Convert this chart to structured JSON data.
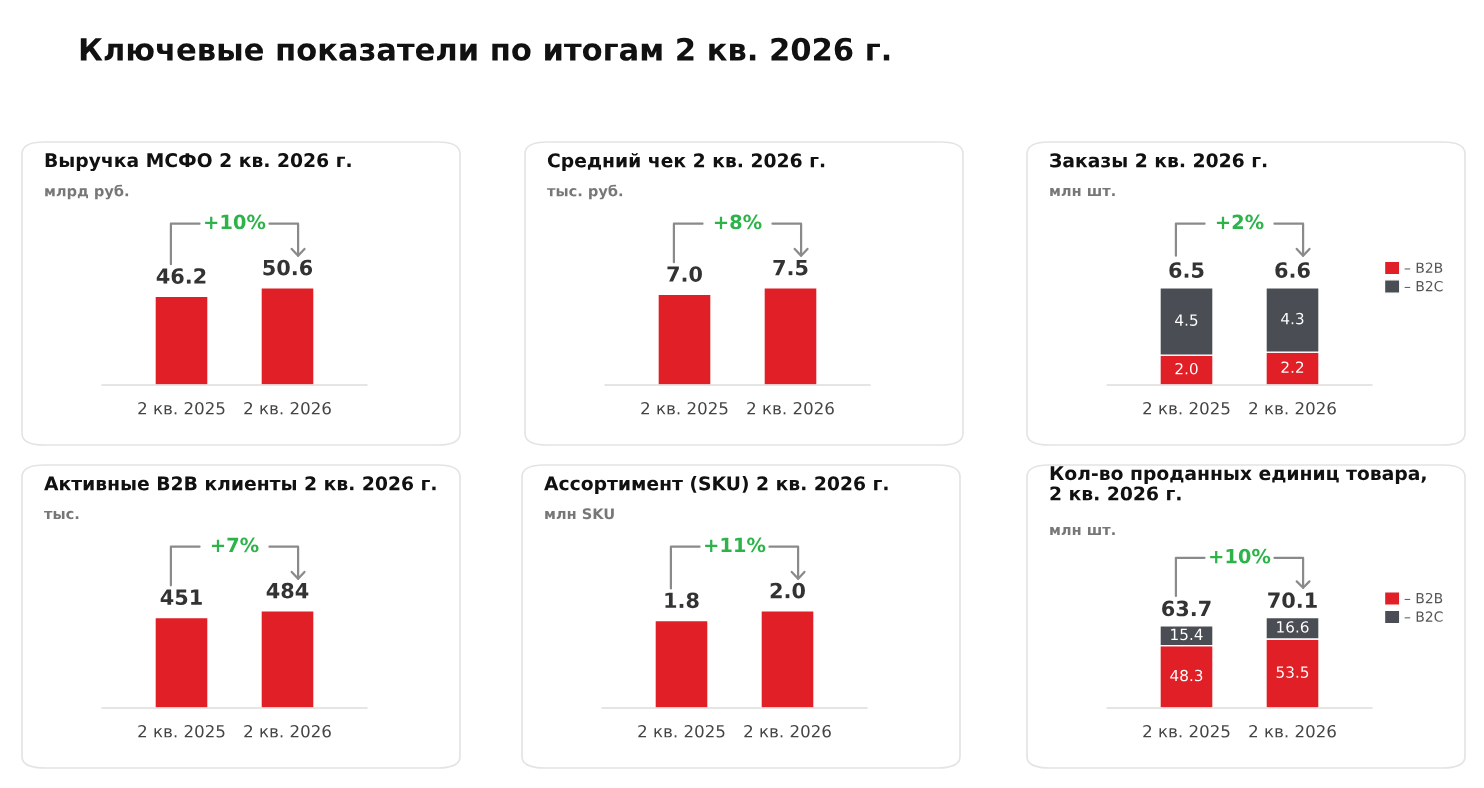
{
  "chart_data": [
    {
      "type": "other",
      "title": "Ключевые показатели по итогам 2 кв. 2026 г."
    },
    {
      "type": "bar",
      "title": "Выручка МСФО 2 кв. 2026 г.",
      "subtitle": "млрд руб.",
      "categories": [
        "2 кв. 2025",
        "2 кв. 2026"
      ],
      "series": [
        {
          "color": "#e11f26",
          "values": [
            46.2,
            50.6
          ]
        }
      ],
      "data_labels": true,
      "annotations": [
        "+10%"
      ]
    },
    {
      "type": "bar",
      "title": "Средний чек 2 кв. 2026 г.",
      "subtitle": "тыс. руб.",
      "categories": [
        "2 кв. 2025",
        "2 кв. 2026"
      ],
      "series": [
        {
          "color": "#e11f26",
          "values": [
            7.0,
            7.5
          ],
          "value_labels": [
            "7.0",
            "7.5"
          ]
        }
      ],
      "annotations": [
        "+8%"
      ]
    },
    {
      "type": "bar",
      "title": "Заказы 2 кв. 2026 г.",
      "subtitle": "млн шт.",
      "categories": [
        "2 кв. 2025",
        "2 кв. 2026"
      ],
      "stacked": true,
      "legend": "right",
      "series": [
        {
          "name": "– B2B",
          "color": "#e11f26",
          "values": [
            2.0,
            2.2
          ],
          "value_labels": [
            "2.0",
            "2.2"
          ]
        },
        {
          "name": "– B2C",
          "color": "#4a4e54",
          "values": [
            4.5,
            4.3
          ],
          "value_labels": [
            "4.5",
            "4.3"
          ]
        }
      ],
      "totals": [
        "6.5",
        "6.6"
      ],
      "annotations": [
        "+2%"
      ]
    },
    {
      "type": "bar",
      "title": "Активные B2B клиенты 2 кв. 2026 г.",
      "subtitle": "тыс.",
      "categories": [
        "2 кв. 2025",
        "2 кв. 2026"
      ],
      "series": [
        {
          "color": "#e11f26",
          "values": [
            451,
            484
          ]
        }
      ],
      "data_labels": true,
      "annotations": [
        "+7%"
      ]
    },
    {
      "type": "bar",
      "title": "Ассортимент (SKU) 2 кв. 2026 г.",
      "subtitle": "млн SKU",
      "categories": [
        "2 кв. 2025",
        "2 кв. 2026"
      ],
      "series": [
        {
          "color": "#e11f26",
          "values": [
            1.8,
            2.0
          ],
          "value_labels": [
            "1.8",
            "2.0"
          ]
        }
      ],
      "annotations": [
        "+11%"
      ]
    },
    {
      "type": "bar",
      "title": "Кол-во проданных единиц товара,\n2 кв. 2026 г.",
      "subtitle": "млн шт.",
      "categories": [
        "2 кв. 2025",
        "2 кв. 2026"
      ],
      "stacked": true,
      "legend": "right",
      "series": [
        {
          "name": "– B2B",
          "color": "#e11f26",
          "values": [
            48.3,
            53.5
          ],
          "value_labels": [
            "48.3",
            "53.5"
          ]
        },
        {
          "name": "– B2C",
          "color": "#4a4e54",
          "values": [
            15.4,
            16.6
          ],
          "value_labels": [
            "15.4",
            "16.6"
          ]
        }
      ],
      "totals": [
        "63.7",
        "70.1"
      ],
      "annotations": [
        "+10%"
      ]
    }
  ]
}
